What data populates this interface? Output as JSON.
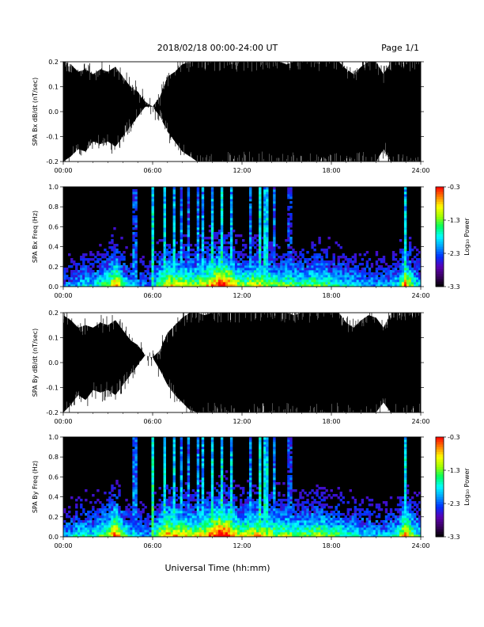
{
  "header": {
    "title": "2018/02/18   00:00-24:00 UT",
    "page": "Page 1/1"
  },
  "footer": {
    "xlabel": "Universal Time (hh:mm)"
  },
  "colors": {
    "background": "#000000",
    "trace": "#000000",
    "colormap": [
      "#000000",
      "#3a0060",
      "#5a00b4",
      "#0030ff",
      "#00a0ff",
      "#00ffff",
      "#00ff60",
      "#a0ff00",
      "#ffff00",
      "#ff8000",
      "#ff0000"
    ]
  },
  "chart_data": [
    {
      "type": "line",
      "ylabel": "SPA Bx dB/dt (nT/sec)",
      "xlim": [
        0,
        24
      ],
      "ylim": [
        -0.2,
        0.2
      ],
      "x_ticks": [
        "00:00",
        "06:00",
        "12:00",
        "18:00",
        "24:00"
      ],
      "y_ticks": [
        "-0.2",
        "-0.1",
        "0.0",
        "0.1",
        "0.2"
      ],
      "y_tick_values": [
        -0.2,
        -0.1,
        0.0,
        0.1,
        0.2
      ],
      "envelope_hours": [
        0,
        0.5,
        1,
        1.5,
        2,
        2.5,
        3,
        3.5,
        4,
        4.5,
        5,
        5.5,
        6,
        6.5,
        7,
        7.5,
        8,
        8.5,
        9,
        9.5,
        10,
        10.5,
        11,
        11.5,
        12,
        12.5,
        13,
        13.5,
        14,
        14.5,
        15,
        15.5,
        16,
        16.5,
        17,
        17.5,
        18,
        18.5,
        19,
        19.5,
        20,
        20.5,
        21,
        21.5,
        22,
        22.5,
        23,
        23.5,
        24
      ],
      "envelope_upper": [
        0.2,
        0.19,
        0.16,
        0.17,
        0.15,
        0.17,
        0.16,
        0.18,
        0.14,
        0.1,
        0.08,
        0.04,
        0.02,
        0.06,
        0.14,
        0.16,
        0.19,
        0.2,
        0.2,
        0.2,
        0.2,
        0.2,
        0.2,
        0.2,
        0.2,
        0.2,
        0.2,
        0.2,
        0.2,
        0.2,
        0.19,
        0.2,
        0.2,
        0.2,
        0.2,
        0.2,
        0.2,
        0.2,
        0.17,
        0.15,
        0.18,
        0.2,
        0.2,
        0.15,
        0.2,
        0.2,
        0.2,
        0.2,
        0.2
      ],
      "envelope_lower": [
        -0.2,
        -0.18,
        -0.15,
        -0.16,
        -0.12,
        -0.13,
        -0.12,
        -0.14,
        -0.1,
        -0.06,
        -0.02,
        0.02,
        0.02,
        -0.02,
        -0.08,
        -0.12,
        -0.16,
        -0.18,
        -0.2,
        -0.2,
        -0.2,
        -0.2,
        -0.2,
        -0.2,
        -0.2,
        -0.2,
        -0.2,
        -0.2,
        -0.2,
        -0.2,
        -0.2,
        -0.2,
        -0.2,
        -0.2,
        -0.2,
        -0.2,
        -0.2,
        -0.2,
        -0.2,
        -0.2,
        -0.2,
        -0.2,
        -0.2,
        -0.15,
        -0.2,
        -0.2,
        -0.2,
        -0.2,
        -0.2
      ]
    },
    {
      "type": "heatmap",
      "ylabel": "SPA Bx Freq (Hz)",
      "xlim": [
        0,
        24
      ],
      "ylim": [
        0,
        1.0
      ],
      "x_ticks": [
        "00:00",
        "06:00",
        "12:00",
        "18:00",
        "24:00"
      ],
      "y_ticks": [
        "0.0",
        "0.2",
        "0.4",
        "0.6",
        "0.8",
        "1.0"
      ],
      "y_tick_values": [
        0,
        0.2,
        0.4,
        0.6,
        0.8,
        1.0
      ],
      "colorbar": {
        "label": "Log₁₀ Power",
        "range": [
          -3.3,
          -0.3
        ],
        "ticks": [
          "-0.3",
          "-1.3",
          "-2.3",
          "-3.3"
        ],
        "tick_values": [
          -0.3,
          -1.3,
          -2.3,
          -3.3
        ]
      },
      "activity_hours": [
        0,
        0.5,
        1,
        1.5,
        2,
        2.5,
        3,
        3.5,
        4,
        4.5,
        5,
        5.5,
        6,
        6.5,
        7,
        7.5,
        8,
        8.5,
        9,
        9.5,
        10,
        10.5,
        11,
        11.5,
        12,
        12.5,
        13,
        13.5,
        14,
        14.5,
        15,
        15.5,
        16,
        16.5,
        17,
        17.5,
        18,
        18.5,
        19,
        19.5,
        20,
        20.5,
        21,
        21.5,
        22,
        22.5,
        23,
        23.5,
        24
      ],
      "activity_level": [
        0.3,
        0.35,
        0.4,
        0.45,
        0.4,
        0.5,
        0.55,
        0.85,
        0.5,
        0.4,
        0.35,
        0.3,
        0.35,
        0.6,
        0.75,
        0.7,
        0.7,
        0.6,
        0.65,
        0.7,
        0.8,
        0.95,
        0.9,
        0.7,
        0.6,
        0.65,
        0.7,
        0.65,
        0.6,
        0.55,
        0.6,
        0.55,
        0.5,
        0.55,
        0.6,
        0.55,
        0.5,
        0.5,
        0.45,
        0.45,
        0.4,
        0.4,
        0.35,
        0.35,
        0.4,
        0.45,
        0.85,
        0.5,
        0.4
      ],
      "column_hours": [
        4.8,
        6.0,
        6.8,
        7.5,
        7.9,
        8.4,
        9.0,
        9.4,
        10.0,
        10.6,
        11.3,
        12.6,
        13.2,
        13.6,
        14.1,
        15.2,
        23.0
      ],
      "column_level": [
        0.5,
        0.8,
        0.75,
        0.7,
        0.6,
        0.55,
        0.6,
        0.65,
        0.75,
        0.8,
        0.7,
        0.55,
        0.8,
        0.75,
        0.55,
        0.45,
        0.75
      ],
      "hotspot_hours": [
        3.4,
        10.9,
        23.0
      ],
      "hotspot_level": [
        0.95,
        1.0,
        0.9
      ]
    },
    {
      "type": "line",
      "ylabel": "SPA By dB/dt (nT/sec)",
      "xlim": [
        0,
        24
      ],
      "ylim": [
        -0.2,
        0.2
      ],
      "x_ticks": [
        "00:00",
        "06:00",
        "12:00",
        "18:00",
        "24:00"
      ],
      "y_ticks": [
        "-0.2",
        "-0.1",
        "0.0",
        "0.1",
        "0.2"
      ],
      "y_tick_values": [
        -0.2,
        -0.1,
        0.0,
        0.1,
        0.2
      ],
      "envelope_hours": [
        0,
        0.5,
        1,
        1.5,
        2,
        2.5,
        3,
        3.5,
        4,
        4.5,
        5,
        5.5,
        6,
        6.5,
        7,
        7.5,
        8,
        8.5,
        9,
        9.5,
        10,
        10.5,
        11,
        11.5,
        12,
        12.5,
        13,
        13.5,
        14,
        14.5,
        15,
        15.5,
        16,
        16.5,
        17,
        17.5,
        18,
        18.5,
        19,
        19.5,
        20,
        20.5,
        21,
        21.5,
        22,
        22.5,
        23,
        23.5,
        24
      ],
      "envelope_upper": [
        0.19,
        0.17,
        0.14,
        0.15,
        0.14,
        0.16,
        0.15,
        0.17,
        0.13,
        0.09,
        0.07,
        0.03,
        0.02,
        0.05,
        0.12,
        0.15,
        0.18,
        0.2,
        0.2,
        0.19,
        0.2,
        0.2,
        0.2,
        0.2,
        0.2,
        0.2,
        0.2,
        0.2,
        0.2,
        0.2,
        0.2,
        0.19,
        0.2,
        0.2,
        0.2,
        0.2,
        0.2,
        0.2,
        0.16,
        0.14,
        0.17,
        0.19,
        0.18,
        0.14,
        0.2,
        0.2,
        0.2,
        0.2,
        0.2
      ],
      "envelope_lower": [
        -0.2,
        -0.17,
        -0.13,
        -0.15,
        -0.11,
        -0.12,
        -0.11,
        -0.13,
        -0.09,
        -0.05,
        -0.01,
        0.03,
        0.02,
        -0.03,
        -0.09,
        -0.13,
        -0.16,
        -0.19,
        -0.2,
        -0.2,
        -0.2,
        -0.2,
        -0.2,
        -0.2,
        -0.2,
        -0.2,
        -0.2,
        -0.2,
        -0.2,
        -0.2,
        -0.2,
        -0.2,
        -0.2,
        -0.2,
        -0.2,
        -0.2,
        -0.2,
        -0.2,
        -0.2,
        -0.2,
        -0.2,
        -0.2,
        -0.2,
        -0.16,
        -0.2,
        -0.2,
        -0.2,
        -0.2,
        -0.2
      ]
    },
    {
      "type": "heatmap",
      "ylabel": "SPA By Freq (Hz)",
      "xlim": [
        0,
        24
      ],
      "ylim": [
        0,
        1.0
      ],
      "x_ticks": [
        "00:00",
        "06:00",
        "12:00",
        "18:00",
        "24:00"
      ],
      "y_ticks": [
        "0.0",
        "0.2",
        "0.4",
        "0.6",
        "0.8",
        "1.0"
      ],
      "y_tick_values": [
        0,
        0.2,
        0.4,
        0.6,
        0.8,
        1.0
      ],
      "colorbar": {
        "label": "Log₁₀ Power",
        "range": [
          -3.3,
          -0.3
        ],
        "ticks": [
          "-0.3",
          "-1.3",
          "-2.3",
          "-3.3"
        ],
        "tick_values": [
          -0.3,
          -1.3,
          -2.3,
          -3.3
        ]
      },
      "activity_hours": [
        0,
        0.5,
        1,
        1.5,
        2,
        2.5,
        3,
        3.5,
        4,
        4.5,
        5,
        5.5,
        6,
        6.5,
        7,
        7.5,
        8,
        8.5,
        9,
        9.5,
        10,
        10.5,
        11,
        11.5,
        12,
        12.5,
        13,
        13.5,
        14,
        14.5,
        15,
        15.5,
        16,
        16.5,
        17,
        17.5,
        18,
        18.5,
        19,
        19.5,
        20,
        20.5,
        21,
        21.5,
        22,
        22.5,
        23,
        23.5,
        24
      ],
      "activity_level": [
        0.35,
        0.4,
        0.45,
        0.5,
        0.45,
        0.55,
        0.6,
        0.9,
        0.55,
        0.45,
        0.4,
        0.35,
        0.4,
        0.65,
        0.8,
        0.75,
        0.75,
        0.65,
        0.7,
        0.75,
        0.85,
        1.0,
        0.95,
        0.75,
        0.65,
        0.7,
        0.75,
        0.7,
        0.65,
        0.6,
        0.65,
        0.6,
        0.55,
        0.6,
        0.65,
        0.6,
        0.55,
        0.55,
        0.5,
        0.5,
        0.45,
        0.45,
        0.4,
        0.4,
        0.45,
        0.5,
        0.9,
        0.55,
        0.45
      ],
      "column_hours": [
        4.8,
        6.0,
        6.8,
        7.5,
        7.9,
        8.4,
        9.0,
        9.4,
        10.0,
        10.6,
        11.3,
        12.6,
        13.2,
        13.6,
        14.1,
        15.2,
        23.0
      ],
      "column_level": [
        0.55,
        0.85,
        0.8,
        0.75,
        0.65,
        0.6,
        0.65,
        0.7,
        0.8,
        0.85,
        0.75,
        0.6,
        0.85,
        0.8,
        0.6,
        0.5,
        0.8
      ],
      "hotspot_hours": [
        3.4,
        10.9,
        23.0
      ],
      "hotspot_level": [
        1.0,
        1.0,
        0.95
      ]
    }
  ]
}
